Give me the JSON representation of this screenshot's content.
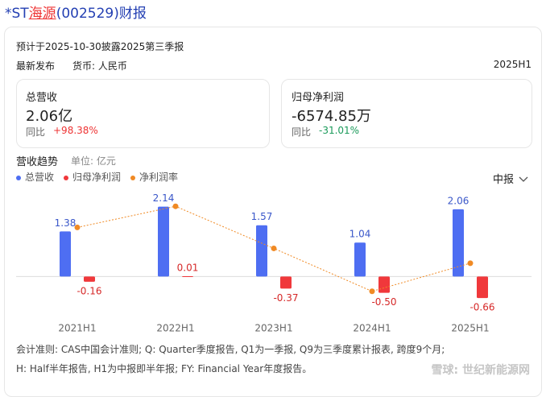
{
  "header": {
    "title_parts": [
      "*ST",
      "海源",
      "(002529)财报"
    ]
  },
  "notice": "预计于2025-10-30披露2025第三季报",
  "info_row": {
    "release": "最新发布",
    "currency": "货币: 人民币",
    "period": "2025H1"
  },
  "cards": [
    {
      "label": "总营收",
      "value": "2.06亿",
      "yoy_label": "同比",
      "yoy": "+98.38%"
    },
    {
      "label": "归母净利润",
      "value": "-6574.85万",
      "yoy_label": "同比",
      "yoy": "-31.01%"
    }
  ],
  "chart_header": {
    "title": "营收趋势",
    "unit": "单位: 亿元",
    "selector": "中报"
  },
  "chart_data": {
    "type": "bar",
    "categories": [
      "2021H1",
      "2022H1",
      "2023H1",
      "2024H1",
      "2025H1"
    ],
    "series": [
      {
        "name": "总营收",
        "color": "#4e6ef2",
        "values": [
          1.38,
          2.14,
          1.57,
          1.04,
          2.06
        ],
        "value_labels": [
          "1.38",
          "2.14",
          "1.57",
          "1.04",
          "2.06"
        ]
      },
      {
        "name": "归母净利润",
        "color": "#f0383b",
        "values": [
          -0.16,
          0.01,
          -0.37,
          -0.5,
          -0.66
        ],
        "value_labels": [
          "-0.16",
          "0.01",
          "-0.37",
          "-0.50",
          "-0.66"
        ]
      },
      {
        "name": "净利润率",
        "color": "#f08a24",
        "type": "line",
        "axis": "y2",
        "values": [
          -11.59,
          0.47,
          -23.57,
          -48.08,
          -32.04
        ]
      }
    ],
    "ylim": [
      -1.2,
      2.5
    ],
    "y2lim": [
      -62,
      7
    ]
  },
  "footnotes": [
    "会计准则: CAS中国会计准则; Q: Quarter季度报告, Q1为一季报, Q9为三季度累计报表, 跨度9个月;",
    "H: Half半年报告, H1为中报即半年报; FY: Financial Year年度报告。"
  ],
  "watermark": "雪球: 世纪新能源网"
}
